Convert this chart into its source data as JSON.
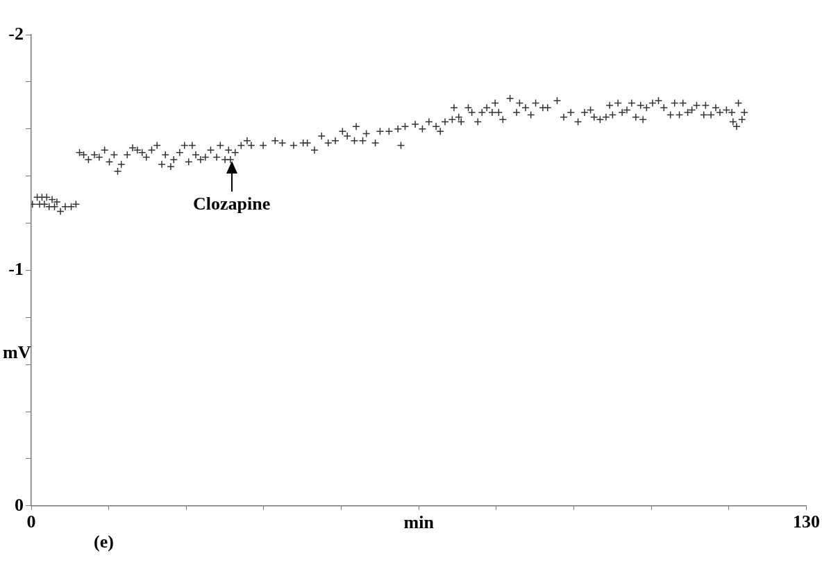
{
  "chart_data": {
    "type": "scatter",
    "xlabel": "min",
    "ylabel": "mV",
    "xlim": [
      0,
      130
    ],
    "ylim": [
      0,
      -2
    ],
    "xticks": [
      0,
      {
        "value": 13,
        "label": null
      },
      {
        "value": 26,
        "label": null
      },
      {
        "value": 39,
        "label": null
      },
      {
        "value": 52,
        "label": null
      },
      {
        "value": 65,
        "label": null
      },
      {
        "value": 78,
        "label": null
      },
      {
        "value": 91,
        "label": null
      },
      {
        "value": 104,
        "label": null
      },
      {
        "value": 117,
        "label": null
      },
      130
    ],
    "yticks": [
      -2,
      {
        "value": -1.8,
        "label": null
      },
      {
        "value": -1.6,
        "label": null
      },
      {
        "value": -1.4,
        "label": null
      },
      {
        "value": -1.2,
        "label": null
      },
      -1,
      {
        "value": -0.8,
        "label": null
      },
      {
        "value": -0.6,
        "label": null
      },
      {
        "value": -0.4,
        "label": null
      },
      {
        "value": -0.2,
        "label": null
      },
      0
    ],
    "grid": false,
    "legend": false,
    "marker": "cross",
    "annotations": [
      {
        "text": "Clozapine",
        "x": 33.6,
        "y": -1.47
      },
      "(e)"
    ],
    "series": [
      {
        "color": "#333333",
        "x": [
          0.2,
          1.0,
          1.4,
          1.8,
          2.2,
          2.6,
          3.0,
          3.5,
          3.9,
          4.3,
          4.9,
          5.7,
          6.7,
          7.5,
          8.1,
          8.8,
          9.6,
          10.6,
          11.4,
          12.3,
          13.1,
          13.9,
          14.5,
          15.1,
          16.1,
          17.0,
          17.8,
          18.6,
          19.3,
          20.2,
          21.1,
          21.9,
          22.5,
          23.4,
          23.9,
          24.9,
          25.7,
          26.4,
          27.0,
          27.6,
          28.4,
          29.2,
          30.1,
          31.1,
          31.7,
          32.5,
          33.1,
          33.4,
          34.2,
          35.2,
          36.2,
          36.9,
          38.9,
          40.9,
          42.1,
          44.0,
          45.6,
          46.3,
          47.5,
          48.7,
          49.8,
          51.0,
          52.2,
          53.0,
          54.2,
          54.5,
          55.6,
          56.2,
          57.7,
          58.5,
          60.0,
          61.5,
          62.0,
          62.7,
          64.4,
          65.6,
          66.7,
          67.9,
          68.6,
          69.4,
          70.6,
          70.9,
          71.7,
          72.1,
          73.3,
          73.9,
          74.9,
          75.6,
          76.4,
          77.3,
          77.8,
          78.4,
          79.1,
          80.3,
          81.4,
          81.9,
          82.9,
          83.8,
          84.6,
          85.8,
          86.6,
          88.2,
          89.3,
          90.5,
          91.7,
          92.8,
          93.8,
          94.4,
          95.4,
          96.4,
          97.0,
          97.5,
          98.4,
          99.1,
          99.9,
          100.7,
          101.4,
          102.2,
          102.6,
          103.2,
          104.2,
          105.2,
          106.1,
          107.2,
          107.9,
          108.7,
          109.3,
          110.1,
          110.8,
          111.6,
          112.8,
          113.1,
          114.0,
          114.8,
          115.5,
          116.6,
          117.5,
          117.7,
          118.3,
          118.6,
          119.2,
          119.6
        ],
        "values": [
          -1.28,
          -1.31,
          -1.28,
          -1.31,
          -1.28,
          -1.31,
          -1.27,
          -1.3,
          -1.27,
          -1.29,
          -1.25,
          -1.27,
          -1.27,
          -1.28,
          -1.5,
          -1.49,
          -1.47,
          -1.49,
          -1.48,
          -1.51,
          -1.46,
          -1.49,
          -1.42,
          -1.45,
          -1.49,
          -1.52,
          -1.51,
          -1.5,
          -1.48,
          -1.51,
          -1.53,
          -1.45,
          -1.49,
          -1.44,
          -1.47,
          -1.5,
          -1.53,
          -1.46,
          -1.53,
          -1.49,
          -1.47,
          -1.48,
          -1.51,
          -1.48,
          -1.53,
          -1.47,
          -1.51,
          -1.47,
          -1.5,
          -1.53,
          -1.55,
          -1.53,
          -1.53,
          -1.55,
          -1.54,
          -1.53,
          -1.54,
          -1.54,
          -1.51,
          -1.57,
          -1.54,
          -1.55,
          -1.59,
          -1.57,
          -1.55,
          -1.61,
          -1.55,
          -1.58,
          -1.54,
          -1.59,
          -1.59,
          -1.6,
          -1.53,
          -1.61,
          -1.62,
          -1.6,
          -1.63,
          -1.61,
          -1.59,
          -1.63,
          -1.64,
          -1.69,
          -1.65,
          -1.63,
          -1.69,
          -1.67,
          -1.63,
          -1.67,
          -1.69,
          -1.67,
          -1.71,
          -1.67,
          -1.64,
          -1.73,
          -1.67,
          -1.71,
          -1.69,
          -1.66,
          -1.71,
          -1.69,
          -1.69,
          -1.72,
          -1.65,
          -1.67,
          -1.63,
          -1.67,
          -1.68,
          -1.65,
          -1.64,
          -1.65,
          -1.7,
          -1.66,
          -1.71,
          -1.67,
          -1.68,
          -1.71,
          -1.65,
          -1.7,
          -1.64,
          -1.69,
          -1.71,
          -1.72,
          -1.69,
          -1.66,
          -1.71,
          -1.66,
          -1.71,
          -1.67,
          -1.68,
          -1.7,
          -1.66,
          -1.7,
          -1.66,
          -1.69,
          -1.67,
          -1.68,
          -1.67,
          -1.63,
          -1.61,
          -1.71,
          -1.64,
          -1.67
        ]
      }
    ]
  }
}
